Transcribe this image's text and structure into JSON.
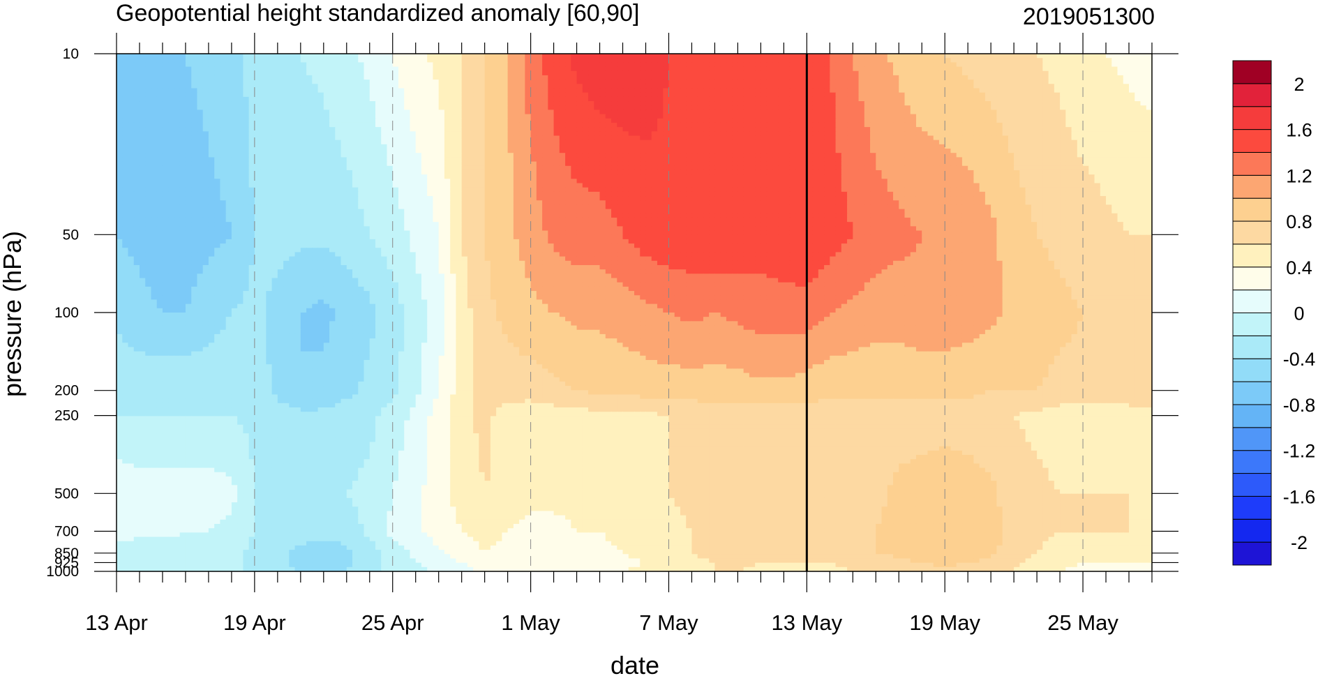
{
  "chart_data": {
    "type": "heatmap",
    "title": "Geopotential height standardized anomaly [60,90]",
    "subtitle": "2019051300",
    "xlabel": "date",
    "ylabel": "pressure (hPa)",
    "x": [
      "13 Apr",
      "14 Apr",
      "15 Apr",
      "16 Apr",
      "17 Apr",
      "18 Apr",
      "19 Apr",
      "20 Apr",
      "21 Apr",
      "22 Apr",
      "23 Apr",
      "24 Apr",
      "25 Apr",
      "26 Apr",
      "27 Apr",
      "28 Apr",
      "29 Apr",
      "30 Apr",
      "1 May",
      "2 May",
      "3 May",
      "4 May",
      "5 May",
      "6 May",
      "7 May",
      "8 May",
      "9 May",
      "10 May",
      "11 May",
      "12 May",
      "13 May",
      "14 May",
      "15 May",
      "16 May",
      "17 May",
      "18 May",
      "19 May",
      "20 May",
      "21 May",
      "22 May",
      "23 May",
      "24 May",
      "25 May",
      "26 May",
      "27 May",
      "28 May"
    ],
    "x_tick_labels": [
      "13 Apr",
      "19 Apr",
      "25 Apr",
      "1 May",
      "7 May",
      "13 May",
      "19 May",
      "25 May"
    ],
    "y_levels_hPa": [
      10,
      50,
      100,
      200,
      250,
      500,
      700,
      850,
      925,
      1000
    ],
    "y_tick_labels": [
      "10",
      "50",
      "100",
      "200",
      "250",
      "500",
      "700",
      "850",
      "925",
      "1000"
    ],
    "y_scale": "log",
    "y_inverted": true,
    "vertical_marker": "13 May",
    "values": [
      [
        -0.6,
        -0.6,
        -0.6,
        -0.6,
        -0.55,
        -0.5,
        -0.3,
        -0.25,
        -0.2,
        -0.15,
        -0.05,
        0.05,
        0.2,
        0.35,
        0.45,
        0.6,
        0.8,
        1.0,
        1.3,
        1.5,
        1.65,
        1.75,
        1.75,
        1.7,
        1.6,
        1.55,
        1.5,
        1.5,
        1.5,
        1.5,
        1.5,
        1.4,
        1.2,
        1.05,
        0.95,
        0.85,
        0.8,
        0.75,
        0.7,
        0.65,
        0.6,
        0.55,
        0.45,
        0.4,
        0.35,
        0.3
      ],
      [
        -0.6,
        -0.65,
        -0.7,
        -0.7,
        -0.65,
        -0.6,
        -0.4,
        -0.35,
        -0.35,
        -0.35,
        -0.3,
        -0.2,
        -0.1,
        0.05,
        0.2,
        0.6,
        0.8,
        0.95,
        1.1,
        1.25,
        1.3,
        1.3,
        1.4,
        1.5,
        1.55,
        1.55,
        1.6,
        1.55,
        1.5,
        1.55,
        1.6,
        1.5,
        1.4,
        1.3,
        1.25,
        1.2,
        1.2,
        1.15,
        1.05,
        0.9,
        0.8,
        0.75,
        0.7,
        0.65,
        0.6,
        0.6
      ],
      [
        -0.45,
        -0.55,
        -0.6,
        -0.6,
        -0.5,
        -0.4,
        -0.35,
        -0.45,
        -0.6,
        -0.65,
        -0.55,
        -0.45,
        -0.3,
        -0.1,
        0.1,
        0.5,
        0.75,
        0.85,
        0.95,
        1.0,
        1.05,
        1.05,
        1.1,
        1.15,
        1.2,
        1.25,
        1.2,
        1.25,
        1.3,
        1.3,
        1.3,
        1.2,
        1.15,
        1.1,
        1.1,
        1.15,
        1.15,
        1.1,
        1.05,
        0.95,
        0.9,
        0.85,
        0.8,
        0.8,
        0.8,
        0.8
      ],
      [
        -0.25,
        -0.25,
        -0.25,
        -0.25,
        -0.25,
        -0.25,
        -0.3,
        -0.45,
        -0.6,
        -0.55,
        -0.45,
        -0.35,
        -0.25,
        -0.05,
        0.2,
        0.5,
        0.7,
        0.7,
        0.7,
        0.75,
        0.8,
        0.85,
        0.85,
        0.9,
        0.9,
        0.9,
        0.9,
        0.9,
        0.95,
        0.95,
        0.9,
        0.85,
        0.85,
        0.85,
        0.85,
        0.85,
        0.85,
        0.85,
        0.8,
        0.8,
        0.8,
        0.75,
        0.75,
        0.75,
        0.75,
        0.75
      ],
      [
        -0.2,
        -0.2,
        -0.2,
        -0.2,
        -0.2,
        -0.2,
        -0.25,
        -0.3,
        -0.35,
        -0.35,
        -0.3,
        -0.25,
        -0.1,
        0.05,
        0.3,
        0.55,
        0.65,
        0.5,
        0.45,
        0.5,
        0.5,
        0.55,
        0.55,
        0.55,
        0.6,
        0.65,
        0.7,
        0.7,
        0.6,
        0.7,
        0.7,
        0.7,
        0.7,
        0.7,
        0.7,
        0.7,
        0.7,
        0.7,
        0.65,
        0.6,
        0.55,
        0.5,
        0.45,
        0.45,
        0.5,
        0.5
      ],
      [
        0.15,
        0.1,
        0.1,
        0.1,
        0.1,
        0.05,
        -0.2,
        -0.25,
        -0.25,
        -0.25,
        -0.2,
        -0.15,
        0.0,
        0.15,
        0.3,
        0.5,
        0.6,
        0.55,
        0.45,
        0.45,
        0.45,
        0.45,
        0.5,
        0.55,
        0.6,
        0.65,
        0.7,
        0.7,
        0.65,
        0.65,
        0.65,
        0.65,
        0.7,
        0.75,
        0.85,
        0.9,
        0.95,
        0.9,
        0.85,
        0.7,
        0.65,
        0.6,
        0.6,
        0.6,
        0.6,
        0.6
      ],
      [
        0.05,
        0.05,
        0.05,
        0.0,
        0.0,
        -0.05,
        -0.2,
        -0.25,
        -0.3,
        -0.35,
        -0.3,
        -0.15,
        0.05,
        0.15,
        0.3,
        0.4,
        0.45,
        0.4,
        0.35,
        0.35,
        0.4,
        0.4,
        0.45,
        0.5,
        0.55,
        0.6,
        0.65,
        0.7,
        0.65,
        0.65,
        0.65,
        0.7,
        0.75,
        0.8,
        0.85,
        0.95,
        1.0,
        0.95,
        0.85,
        0.75,
        0.65,
        0.6,
        0.6,
        0.6,
        0.6,
        0.55
      ],
      [
        -0.05,
        -0.1,
        -0.1,
        -0.1,
        -0.1,
        -0.15,
        -0.25,
        -0.35,
        -0.45,
        -0.5,
        -0.45,
        -0.3,
        -0.1,
        0.05,
        0.15,
        0.3,
        0.4,
        0.35,
        0.3,
        0.3,
        0.3,
        0.35,
        0.4,
        0.45,
        0.5,
        0.6,
        0.7,
        0.75,
        0.65,
        0.6,
        0.6,
        0.65,
        0.7,
        0.8,
        0.85,
        0.9,
        0.95,
        0.9,
        0.85,
        0.7,
        0.6,
        0.5,
        0.45,
        0.45,
        0.45,
        0.45
      ],
      [
        -0.1,
        -0.15,
        -0.15,
        -0.15,
        -0.15,
        -0.15,
        -0.25,
        -0.35,
        -0.45,
        -0.5,
        -0.45,
        -0.3,
        -0.1,
        0.0,
        0.1,
        0.2,
        0.3,
        0.3,
        0.3,
        0.3,
        0.3,
        0.3,
        0.35,
        0.4,
        0.45,
        0.55,
        0.6,
        0.65,
        0.6,
        0.6,
        0.6,
        0.6,
        0.65,
        0.7,
        0.75,
        0.8,
        0.85,
        0.8,
        0.75,
        0.65,
        0.55,
        0.45,
        0.4,
        0.4,
        0.4,
        0.4
      ],
      [
        -0.15,
        -0.2,
        -0.15,
        -0.15,
        -0.15,
        -0.15,
        -0.25,
        -0.35,
        -0.4,
        -0.45,
        -0.4,
        -0.3,
        -0.1,
        -0.05,
        0.05,
        0.15,
        0.25,
        0.3,
        0.35,
        0.4,
        0.4,
        0.4,
        0.4,
        0.45,
        0.5,
        0.55,
        0.6,
        0.6,
        0.55,
        0.55,
        0.55,
        0.55,
        0.6,
        0.65,
        0.7,
        0.7,
        0.75,
        0.7,
        0.65,
        0.6,
        0.5,
        0.4,
        0.35,
        0.35,
        0.35,
        0.35
      ]
    ],
    "colorbar": {
      "levels": [
        -2.2,
        -2.0,
        -1.8,
        -1.6,
        -1.4,
        -1.2,
        -1.0,
        -0.8,
        -0.6,
        -0.4,
        -0.2,
        0.0,
        0.2,
        0.4,
        0.6,
        0.8,
        1.0,
        1.2,
        1.4,
        1.6,
        1.8,
        2.0,
        2.2
      ],
      "colors": [
        "#1e14d6",
        "#1428f0",
        "#1e3cfa",
        "#2d5afa",
        "#3c78fa",
        "#5096f8",
        "#64b4f6",
        "#7ccaf8",
        "#92dcf8",
        "#aaeaf8",
        "#c2f4f9",
        "#e6fcfc",
        "#fffdea",
        "#fff1be",
        "#fdd9a2",
        "#fdd090",
        "#fca672",
        "#fc7858",
        "#fc4a3e",
        "#f53c3c",
        "#e2223a",
        "#a00024"
      ],
      "tick_labels": [
        "2",
        "1.6",
        "1.2",
        "0.8",
        "0.4",
        "0",
        "-0.4",
        "-0.8",
        "-1.2",
        "-1.6",
        "-2"
      ],
      "tick_values": [
        2.0,
        1.6,
        1.2,
        0.8,
        0.4,
        0.0,
        -0.4,
        -0.8,
        -1.2,
        -1.6,
        -2.0
      ]
    },
    "grid": "dashed vertical lines at labelled dates",
    "legend": "colorbar right"
  }
}
